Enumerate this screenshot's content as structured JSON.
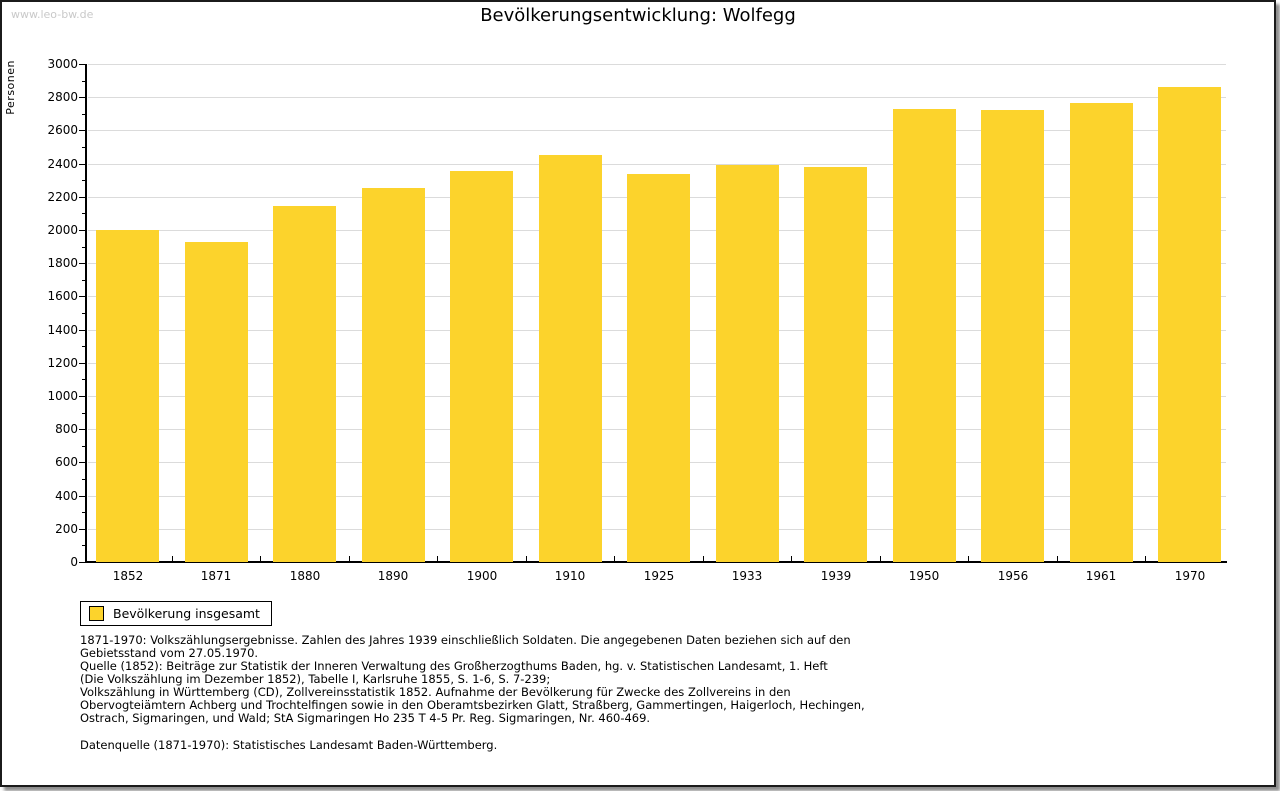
{
  "watermark": "www.leo-bw.de",
  "chart_data": {
    "type": "bar",
    "title": "Bevölkerungsentwicklung: Wolfegg",
    "ylabel": "Personen",
    "xlabel": "",
    "categories": [
      "1852",
      "1871",
      "1880",
      "1890",
      "1900",
      "1910",
      "1925",
      "1933",
      "1939",
      "1950",
      "1956",
      "1961",
      "1970"
    ],
    "values": [
      2000,
      1930,
      2145,
      2255,
      2355,
      2450,
      2340,
      2390,
      2380,
      2730,
      2725,
      2765,
      2860
    ],
    "ylim": [
      0,
      3000
    ],
    "yticks": [
      0,
      200,
      400,
      600,
      800,
      1000,
      1200,
      1400,
      1600,
      1800,
      2000,
      2200,
      2400,
      2600,
      2800,
      3000
    ],
    "ytick_step": 200,
    "yminor_step": 100,
    "grid": true,
    "legend": {
      "label": "Bevölkerung insgesamt",
      "position": "bottom-left"
    },
    "bar_color": "#FCD32C",
    "gridline_color": "#dbdbdb"
  },
  "footer": {
    "note_lines": [
      "1871-1970: Volkszählungsergebnisse. Zahlen des Jahres 1939 einschließlich Soldaten. Die angegebenen Daten beziehen sich auf den",
      "Gebietsstand vom 27.05.1970.",
      "Quelle (1852): Beiträge zur Statistik der Inneren Verwaltung des Großherzogthums Baden, hg. v. Statistischen Landesamt, 1. Heft",
      "(Die Volkszählung im Dezember 1852), Tabelle I, Karlsruhe 1855, S. 1-6, S. 7-239;",
      "Volkszählung in Württemberg (CD), Zollvereinsstatistik 1852. Aufnahme der Bevölkerung für Zwecke des Zollvereins in den",
      "Obervogteiämtern Achberg und Trochtelfingen sowie in den Oberamtsbezirken Glatt, Straßberg, Gammertingen, Haigerloch, Hechingen,",
      "Ostrach, Sigmaringen, und Wald; StA Sigmaringen Ho 235 T 4-5 Pr. Reg. Sigmaringen, Nr. 460-469."
    ],
    "source_line": "Datenquelle (1871-1970): Statistisches Landesamt Baden-Württemberg."
  }
}
